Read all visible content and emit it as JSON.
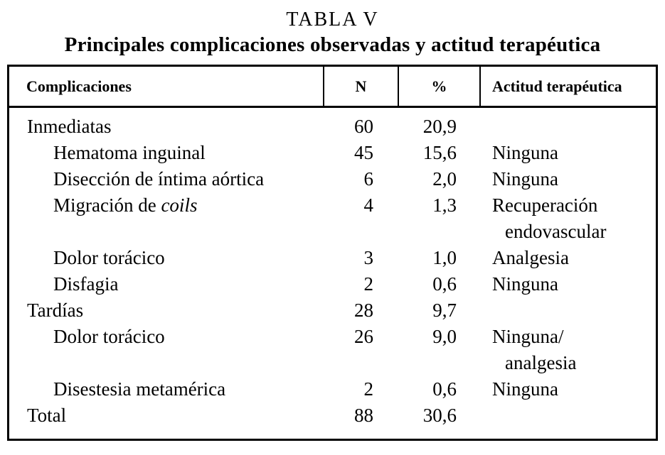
{
  "title": "TABLA V",
  "subtitle": "Principales complicaciones observadas y actitud terapéutica",
  "table": {
    "headers": [
      "Complicaciones",
      "N",
      "%",
      "Actitud terapéutica"
    ],
    "rows": [
      {
        "name": "Inmediatas",
        "indent": false,
        "n": "60",
        "pct": "20,9",
        "action": ""
      },
      {
        "name": "Hematoma inguinal",
        "indent": true,
        "n": "45",
        "pct": "15,6",
        "action": "Ninguna"
      },
      {
        "name": "Disección de íntima aórtica",
        "indent": true,
        "n": "6",
        "pct": "2,0",
        "action": "Ninguna"
      },
      {
        "name": "Migración de ",
        "name_italic": "coils",
        "indent": true,
        "n": "4",
        "pct": "1,3",
        "action": "Recuperación",
        "action2": "endovascular"
      },
      {
        "name": "Dolor torácico",
        "indent": true,
        "n": "3",
        "pct": "1,0",
        "action": "Analgesia"
      },
      {
        "name": "Disfagia",
        "indent": true,
        "n": "2",
        "pct": "0,6",
        "action": "Ninguna"
      },
      {
        "name": "Tardías",
        "indent": false,
        "n": "28",
        "pct": "9,7",
        "action": ""
      },
      {
        "name": "Dolor torácico",
        "indent": true,
        "n": "26",
        "pct": "9,0",
        "action": "Ninguna/",
        "action2": "analgesia"
      },
      {
        "name": "Disestesia metamérica",
        "indent": true,
        "n": "2",
        "pct": "0,6",
        "action": "Ninguna"
      },
      {
        "name": "Total",
        "indent": false,
        "n": "88",
        "pct": "30,6",
        "action": ""
      }
    ]
  }
}
